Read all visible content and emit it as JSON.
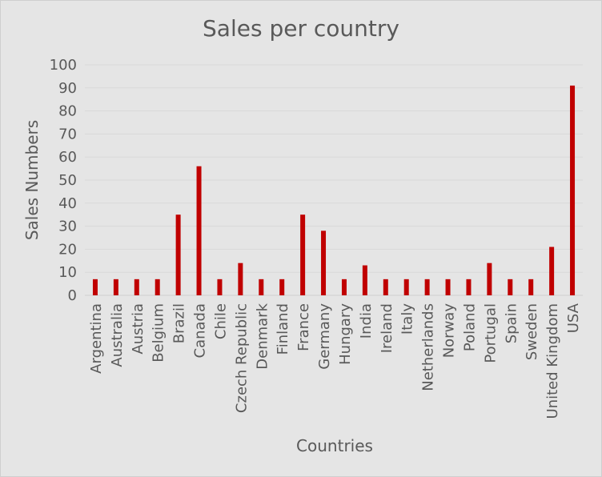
{
  "chart_data": {
    "type": "bar",
    "title": "Sales per country",
    "xlabel": "Countries",
    "ylabel": "Sales Numbers",
    "categories": [
      "Argentina",
      "Australia",
      "Austria",
      "Belgium",
      "Brazil",
      "Canada",
      "Chile",
      "Czech Republic",
      "Denmark",
      "Finland",
      "France",
      "Germany",
      "Hungary",
      "India",
      "Ireland",
      "Italy",
      "Netherlands",
      "Norway",
      "Poland",
      "Portugal",
      "Spain",
      "Sweden",
      "United Kingdom",
      "USA"
    ],
    "values": [
      7,
      7,
      7,
      7,
      35,
      56,
      7,
      14,
      7,
      7,
      35,
      28,
      7,
      13,
      7,
      7,
      7,
      7,
      7,
      14,
      7,
      7,
      21,
      91
    ],
    "ylim": [
      0,
      100
    ],
    "yticks": [
      "0",
      "10",
      "20",
      "30",
      "40",
      "50",
      "60",
      "70",
      "80",
      "90",
      "100"
    ],
    "grid": true,
    "legend": "none",
    "colors": {
      "bar": "#c00000",
      "background": "#e5e5e5",
      "gridline": "#d9d9d9",
      "text": "#595959"
    }
  }
}
